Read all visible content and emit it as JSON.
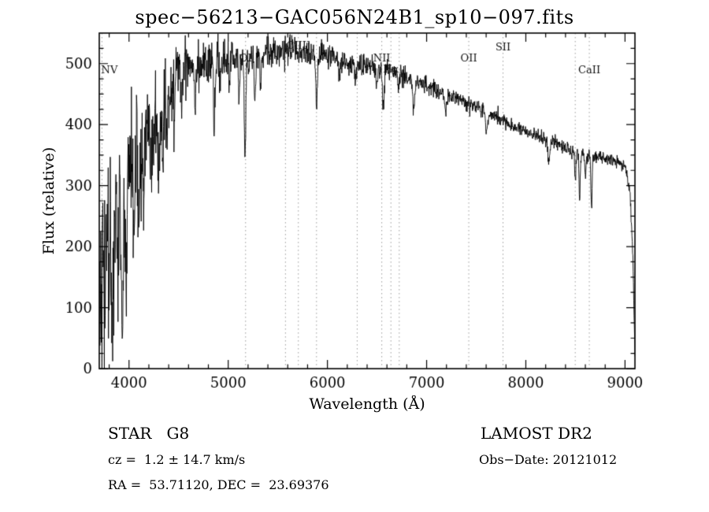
{
  "chart_data": {
    "type": "line",
    "title": "spec−56213−GAC056N24B1_sp10−097.fits",
    "xlabel": "Wavelength (Å)",
    "ylabel": "Flux (relative)",
    "xlim": [
      3700,
      9100
    ],
    "ylim": [
      0,
      550
    ],
    "x_major_ticks": [
      4000,
      5000,
      6000,
      7000,
      8000,
      9000
    ],
    "x_minor_step": 200,
    "y_major_ticks": [
      0,
      100,
      200,
      300,
      400,
      500
    ],
    "y_minor_step": 25,
    "grid": false,
    "legend": "none",
    "line_color": "#000000",
    "marker_line_color": "#9a9a9a",
    "line_markers": [
      {
        "wavelength": 3727,
        "label": "NV",
        "label_y": 93
      },
      {
        "wavelength": 5175,
        "label": "OI",
        "label_y": 78
      },
      {
        "wavelength": 5577,
        "label": "",
        "label_y": 0
      },
      {
        "wavelength": 5707,
        "label": "CIII]",
        "label_y": 62
      },
      {
        "wavelength": 5890,
        "label": "",
        "label_y": 0
      },
      {
        "wavelength": 6300,
        "label": "",
        "label_y": 0
      },
      {
        "wavelength": 6548,
        "label": "NII",
        "label_y": 78
      },
      {
        "wavelength": 6640,
        "label": "Hα",
        "label_y": 92
      },
      {
        "wavelength": 6724,
        "label": "",
        "label_y": 0
      },
      {
        "wavelength": 7425,
        "label": "OII",
        "label_y": 78
      },
      {
        "wavelength": 7770,
        "label": "SII",
        "label_y": 64
      },
      {
        "wavelength": 8498,
        "label": "",
        "label_y": 0
      },
      {
        "wavelength": 8640,
        "label": "CaII",
        "label_y": 93
      }
    ],
    "spectrum": {
      "step": 3,
      "seed": 42,
      "clip": [
        0,
        549
      ],
      "envelope": [
        [
          3700,
          250
        ],
        [
          3740,
          200
        ],
        [
          3780,
          260
        ],
        [
          3820,
          230
        ],
        [
          3860,
          280
        ],
        [
          3900,
          270
        ],
        [
          3950,
          300
        ],
        [
          4000,
          330
        ],
        [
          4050,
          340
        ],
        [
          4100,
          355
        ],
        [
          4150,
          365
        ],
        [
          4200,
          385
        ],
        [
          4250,
          405
        ],
        [
          4300,
          430
        ],
        [
          4350,
          450
        ],
        [
          4400,
          465
        ],
        [
          4450,
          480
        ],
        [
          4500,
          492
        ],
        [
          4600,
          503
        ],
        [
          4700,
          500
        ],
        [
          4800,
          498
        ],
        [
          4900,
          505
        ],
        [
          5000,
          512
        ],
        [
          5100,
          508
        ],
        [
          5200,
          505
        ],
        [
          5300,
          512
        ],
        [
          5400,
          516
        ],
        [
          5500,
          520
        ],
        [
          5600,
          522
        ],
        [
          5700,
          518
        ],
        [
          5800,
          515
        ],
        [
          5900,
          512
        ],
        [
          6000,
          512
        ],
        [
          6100,
          508
        ],
        [
          6200,
          502
        ],
        [
          6300,
          498
        ],
        [
          6400,
          497
        ],
        [
          6500,
          494
        ],
        [
          6600,
          490
        ],
        [
          6700,
          484
        ],
        [
          6800,
          478
        ],
        [
          6900,
          470
        ],
        [
          7000,
          464
        ],
        [
          7100,
          456
        ],
        [
          7200,
          450
        ],
        [
          7300,
          443
        ],
        [
          7400,
          436
        ],
        [
          7500,
          428
        ],
        [
          7600,
          420
        ],
        [
          7700,
          412
        ],
        [
          7800,
          404
        ],
        [
          7900,
          396
        ],
        [
          8000,
          390
        ],
        [
          8100,
          382
        ],
        [
          8200,
          375
        ],
        [
          8300,
          368
        ],
        [
          8400,
          362
        ],
        [
          8500,
          355
        ],
        [
          8600,
          350
        ],
        [
          8700,
          348
        ],
        [
          8800,
          345
        ],
        [
          8900,
          342
        ],
        [
          8960,
          335
        ],
        [
          9010,
          325
        ],
        [
          9050,
          290
        ],
        [
          9080,
          180
        ],
        [
          9100,
          20
        ]
      ],
      "noise_sigma": [
        [
          3700,
          70
        ],
        [
          3800,
          72
        ],
        [
          3900,
          65
        ],
        [
          4000,
          55
        ],
        [
          4100,
          50
        ],
        [
          4200,
          45
        ],
        [
          4300,
          38
        ],
        [
          4400,
          32
        ],
        [
          4500,
          26
        ],
        [
          4700,
          20
        ],
        [
          5000,
          15
        ],
        [
          5300,
          13
        ],
        [
          5600,
          12
        ],
        [
          6000,
          10
        ],
        [
          6400,
          9
        ],
        [
          6800,
          8
        ],
        [
          7200,
          7
        ],
        [
          7600,
          6
        ],
        [
          8000,
          6
        ],
        [
          8500,
          6
        ],
        [
          8800,
          5
        ],
        [
          9100,
          5
        ]
      ],
      "absorption_dips": [
        [
          3712,
          100,
          8
        ],
        [
          3750,
          130,
          9
        ],
        [
          3798,
          120,
          8
        ],
        [
          3835,
          150,
          9
        ],
        [
          3889,
          130,
          9
        ],
        [
          3934,
          190,
          10
        ],
        [
          3969,
          160,
          9
        ],
        [
          4046,
          90,
          8
        ],
        [
          4102,
          130,
          9
        ],
        [
          4144,
          70,
          8
        ],
        [
          4226,
          100,
          8
        ],
        [
          4300,
          120,
          12
        ],
        [
          4340,
          100,
          9
        ],
        [
          4383,
          90,
          8
        ],
        [
          4455,
          60,
          8
        ],
        [
          4531,
          55,
          9
        ],
        [
          4668,
          50,
          8
        ],
        [
          4861,
          95,
          9
        ],
        [
          4920,
          50,
          7
        ],
        [
          5015,
          45,
          7
        ],
        [
          5110,
          60,
          7
        ],
        [
          5170,
          150,
          8
        ],
        [
          5270,
          70,
          8
        ],
        [
          5328,
          45,
          7
        ],
        [
          5890,
          85,
          8
        ],
        [
          6122,
          35,
          7
        ],
        [
          6280,
          35,
          7
        ],
        [
          6495,
          35,
          7
        ],
        [
          6563,
          75,
          8
        ],
        [
          6717,
          30,
          7
        ],
        [
          6870,
          45,
          10
        ],
        [
          7190,
          30,
          9
        ],
        [
          7605,
          35,
          10
        ],
        [
          8230,
          30,
          10
        ],
        [
          8498,
          45,
          6
        ],
        [
          8542,
          75,
          6
        ],
        [
          8600,
          35,
          6
        ],
        [
          8662,
          90,
          6
        ]
      ]
    }
  },
  "footer": {
    "class_label": "STAR   G8",
    "survey": "LAMOST DR2",
    "cz": "cz =  1.2 ± 14.7 km/s",
    "obs_date": "Obs−Date: 20121012",
    "radec": "RA =  53.71120, DEC =  23.69376"
  }
}
